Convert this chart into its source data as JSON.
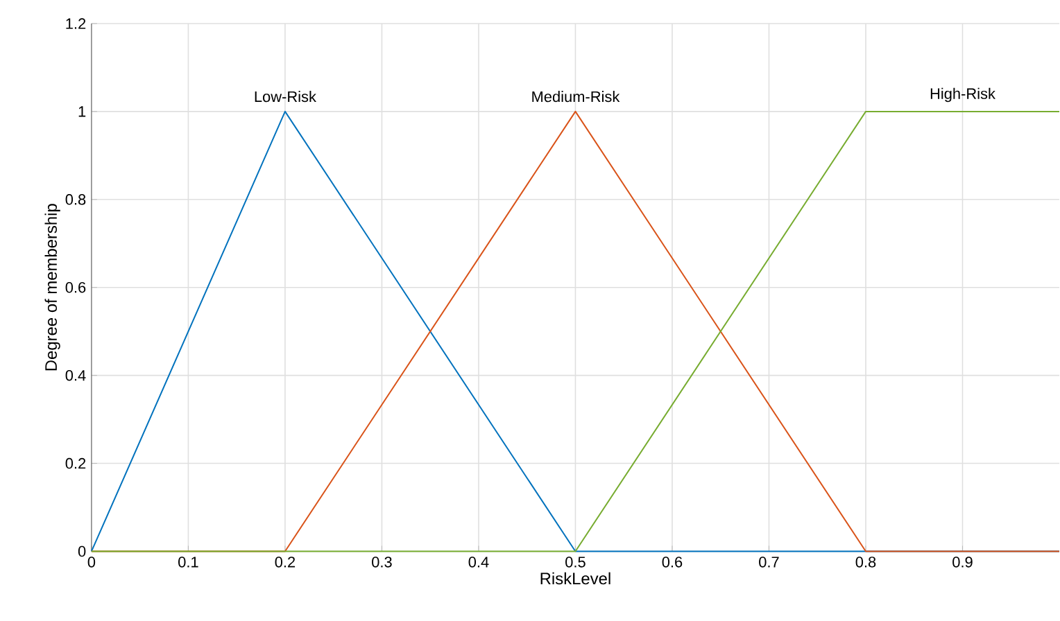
{
  "chart_data": {
    "type": "line",
    "xlabel": "RiskLevel",
    "ylabel": "Degree of membership",
    "xlim": [
      0,
      1
    ],
    "ylim": [
      0,
      1.2
    ],
    "xticks": [
      0,
      0.1,
      0.2,
      0.3,
      0.4,
      0.5,
      0.6,
      0.7,
      0.8,
      0.9
    ],
    "yticks": [
      0,
      0.2,
      0.4,
      0.6,
      0.8,
      1,
      1.2
    ],
    "grid": true,
    "legend": false,
    "marker": "none",
    "line_style": "solid",
    "series": [
      {
        "name": "Low-Risk",
        "color": "#0072bd",
        "x": [
          0,
          0.2,
          0.5,
          1
        ],
        "values": [
          0,
          1,
          0,
          0
        ]
      },
      {
        "name": "Medium-Risk",
        "color": "#d95319",
        "x": [
          0,
          0.2,
          0.5,
          0.8,
          1
        ],
        "values": [
          0,
          0,
          1,
          0,
          0
        ]
      },
      {
        "name": "High-Risk",
        "color": "#77ac30",
        "x": [
          0,
          0.5,
          0.8,
          1
        ],
        "values": [
          0,
          0,
          1,
          1
        ]
      }
    ]
  }
}
